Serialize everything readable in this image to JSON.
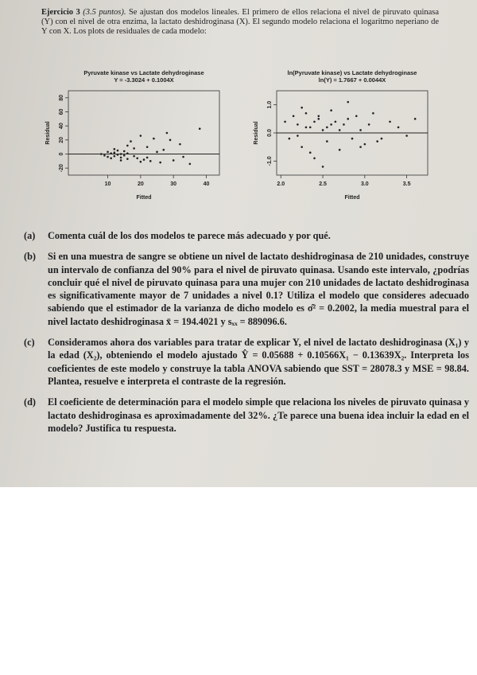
{
  "header": {
    "title": "Ejercicio 3",
    "points": "(3.5 puntos).",
    "text": "Se ajustan dos modelos lineales. El primero de ellos relaciona el nivel de piruvato quinasa (Y) con el nivel de otra enzima, la lactato deshidroginasa (X). El segundo modelo relaciona el logaritmo neperiano de Y con X. Los plots de residuales de cada modelo:"
  },
  "plots": [
    {
      "type": "scatter",
      "title": "Pyruvate kinase vs Lactate dehydroginase",
      "subtitle": "Y = -3.3024 + 0.1004X",
      "x_label": "Fitted",
      "y_label": "Residual",
      "xlim": [
        -2,
        44
      ],
      "ylim": [
        -30,
        90
      ],
      "xticks": [
        10,
        20,
        30,
        40
      ],
      "yticks": [
        -20,
        0,
        20,
        40,
        60,
        80
      ],
      "reference_line": 0,
      "color": "#222",
      "x": [
        8,
        9,
        10,
        10,
        11,
        11,
        12,
        12,
        13,
        13,
        14,
        14,
        15,
        15,
        16,
        16,
        17,
        18,
        18,
        19,
        20,
        21,
        22,
        23,
        24,
        26,
        27,
        28,
        30,
        32,
        35,
        38,
        12,
        14,
        16,
        20,
        25,
        33,
        29,
        22
      ],
      "y": [
        0,
        -2,
        3,
        -4,
        1,
        -6,
        2,
        -3,
        5,
        -1,
        -5,
        0,
        4,
        -2,
        -7,
        1,
        18,
        -3,
        8,
        -6,
        26,
        -8,
        10,
        -10,
        22,
        -12,
        6,
        30,
        -9,
        14,
        -14,
        36,
        7,
        -9,
        12,
        -11,
        3,
        -4,
        20,
        -5
      ]
    },
    {
      "type": "scatter",
      "title": "ln(Pyruvate kinase) vs Lactate dehydroginase",
      "subtitle": "ln(Y) = 1.7667 + 0.0044X",
      "x_label": "Fitted",
      "y_label": "Residual",
      "xlim": [
        1.95,
        3.75
      ],
      "ylim": [
        -1.5,
        1.5
      ],
      "xticks": [
        {
          "value": 2,
          "label": "2.0"
        },
        2.5,
        {
          "value": 3,
          "label": "3.0"
        },
        3.5
      ],
      "yticks": [
        {
          "value": -1,
          "label": "-1.0"
        },
        {
          "value": 0,
          "label": "0.0"
        },
        {
          "value": 1,
          "label": "1.0"
        }
      ],
      "reference_line": 0,
      "color": "#222",
      "x": [
        2.05,
        2.1,
        2.15,
        2.2,
        2.25,
        2.3,
        2.35,
        2.4,
        2.45,
        2.5,
        2.55,
        2.6,
        2.65,
        2.7,
        2.75,
        2.8,
        2.85,
        2.9,
        2.95,
        3.0,
        3.05,
        3.1,
        3.2,
        3.3,
        3.4,
        3.5,
        3.6,
        2.2,
        2.3,
        2.4,
        2.5,
        2.6,
        2.7,
        2.25,
        2.35,
        2.45,
        3.15,
        2.8,
        2.55,
        2.95
      ],
      "y": [
        0.4,
        -0.2,
        0.6,
        0.3,
        -0.5,
        0.7,
        0.2,
        -0.9,
        0.5,
        0.1,
        -0.3,
        0.8,
        0.4,
        -0.6,
        0.3,
        0.5,
        -0.2,
        0.6,
        0.1,
        -0.4,
        0.3,
        0.7,
        -0.2,
        0.4,
        0.2,
        -0.1,
        0.5,
        -0.1,
        0.2,
        0.4,
        -1.2,
        0.3,
        0.1,
        0.9,
        -0.7,
        0.6,
        -0.3,
        1.1,
        0.2,
        -0.5
      ]
    }
  ],
  "items": [
    {
      "label": "(a)",
      "text": "Comenta cuál de los dos modelos te parece más adecuado y por qué."
    },
    {
      "label": "(b)",
      "text": "Si en una muestra de sangre se obtiene un nivel de lactato deshidroginasa de 210 unidades, construye un intervalo de confianza del 90% para el nivel de piruvato quinasa. Usando este intervalo, ¿podrías concluir qué el nivel de piruvato quinasa para una mujer con 210 unidades de lactato deshidroginasa es significativamente mayor de 7 unidades a nivel 0.1? Utiliza el modelo que consideres adecuado sabiendo que el estimador de la varianza de dicho modelo es σ̂² = 0.2002, la media muestral para el nivel lactato deshidroginasa x̄ = 194.4021 y sₓₓ = 889096.6."
    },
    {
      "label": "(c)",
      "text": "Consideramos ahora dos variables para tratar de explicar Y, el nivel de lactato deshidroginasa (X₁) y la edad (X₂), obteniendo el modelo ajustado Ŷ = 0.05688 + 0.10566X₁ − 0.13639X₂. Interpreta los coeficientes de este modelo y construye la tabla ANOVA sabiendo que SST = 28078.3 y MSE = 98.84. Plantea, resuelve e interpreta el contraste de la regresión."
    },
    {
      "label": "(d)",
      "text": "El coeficiente de determinación para el modelo simple que relaciona los niveles de piruvato quinasa y lactato deshidroginasa es aproximadamente del 32%. ¿Te parece una buena idea incluir la edad en el modelo? Justifica tu respuesta."
    }
  ]
}
